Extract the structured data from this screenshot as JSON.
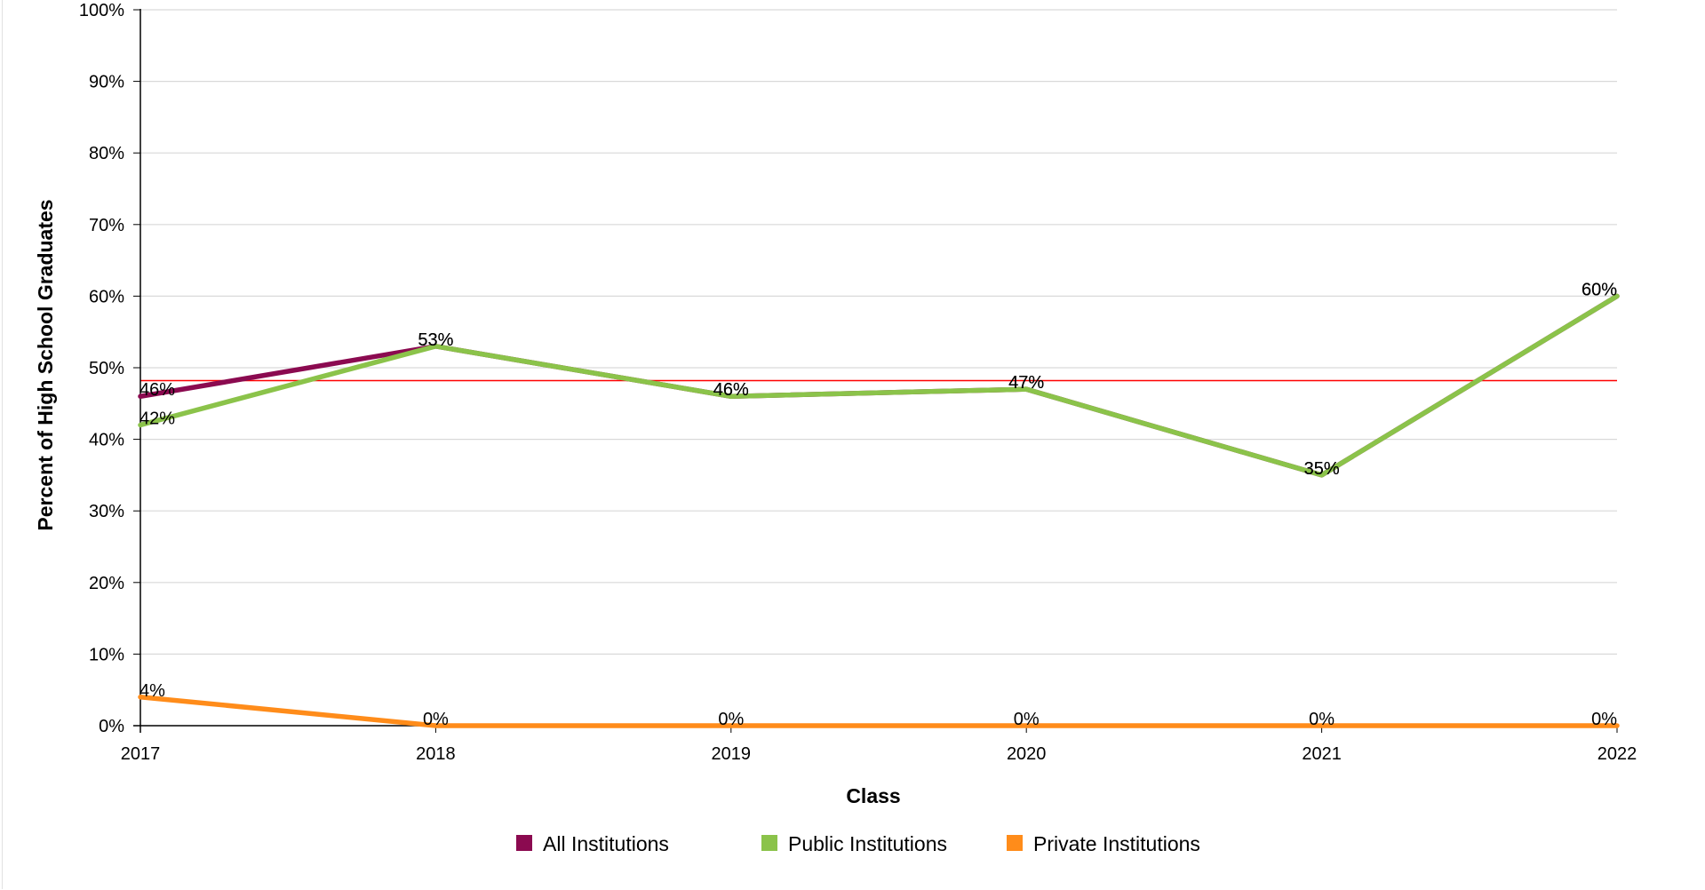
{
  "chart_data": {
    "type": "line",
    "xlabel": "Class",
    "ylabel": "Percent of High School Graduates",
    "x": [
      "2017",
      "2018",
      "2019",
      "2020",
      "2021",
      "2022"
    ],
    "ylim": [
      0,
      100
    ],
    "y_ticks": [
      "0%",
      "10%",
      "20%",
      "30%",
      "40%",
      "50%",
      "60%",
      "70%",
      "80%",
      "90%",
      "100%"
    ],
    "grid": true,
    "legend_position": "bottom",
    "reference_line": {
      "value": 48.2,
      "color": "#ff0000"
    },
    "series": [
      {
        "name": "All Institutions",
        "color": "#8b0a50",
        "values": [
          46,
          53,
          46,
          47,
          35,
          60
        ],
        "labels": [
          "46%",
          "53%",
          "46%",
          "47%",
          "35%",
          "60%"
        ]
      },
      {
        "name": "Public Institutions",
        "color": "#8bc34a",
        "values": [
          42,
          53,
          46,
          47,
          35,
          60
        ],
        "labels": [
          "42%",
          "53%",
          "46%",
          "47%",
          "35%",
          "60%"
        ]
      },
      {
        "name": "Private Institutions",
        "color": "#ff8c1a",
        "values": [
          4,
          0,
          0,
          0,
          0,
          0
        ],
        "labels": [
          "4%",
          "0%",
          "0%",
          "0%",
          "0%",
          "0%"
        ]
      }
    ]
  }
}
